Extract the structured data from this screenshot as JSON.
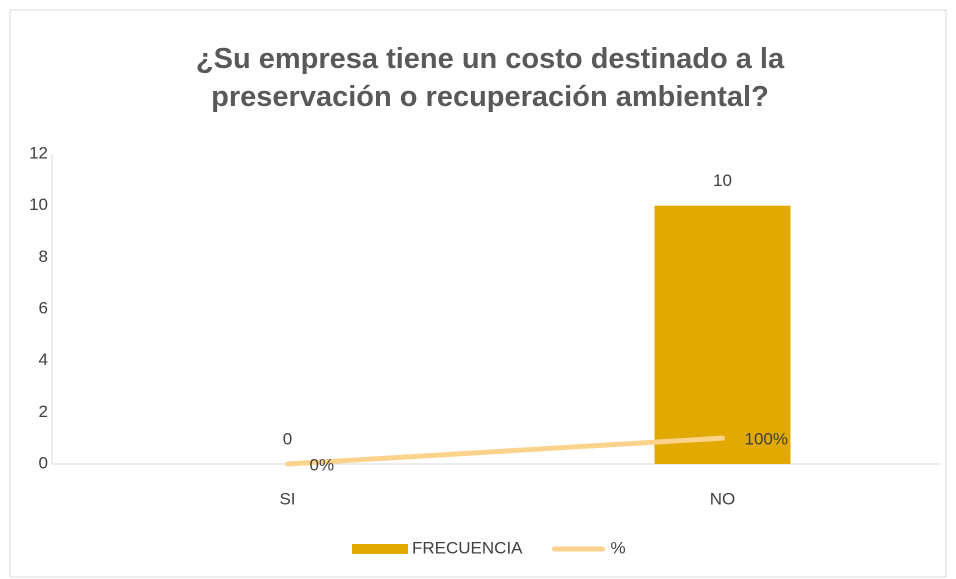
{
  "chart_data": {
    "type": "combo",
    "title": "¿Su empresa tiene un costo destinado a la preservación o recuperación ambiental?",
    "categories": [
      "SI",
      "NO"
    ],
    "series": [
      {
        "name": "FRECUENCIA",
        "type": "bar",
        "color": "#e2a900",
        "values": [
          0,
          10
        ],
        "value_labels": [
          "0",
          "10"
        ]
      },
      {
        "name": "%",
        "type": "line",
        "color": "#fbd38b",
        "values": [
          0,
          1
        ],
        "value_labels": [
          "0%",
          "100%"
        ]
      }
    ],
    "ylim": [
      0,
      12
    ],
    "yticks": [
      0,
      2,
      4,
      6,
      8,
      10,
      12
    ],
    "grid": false,
    "legend": "bottom"
  }
}
